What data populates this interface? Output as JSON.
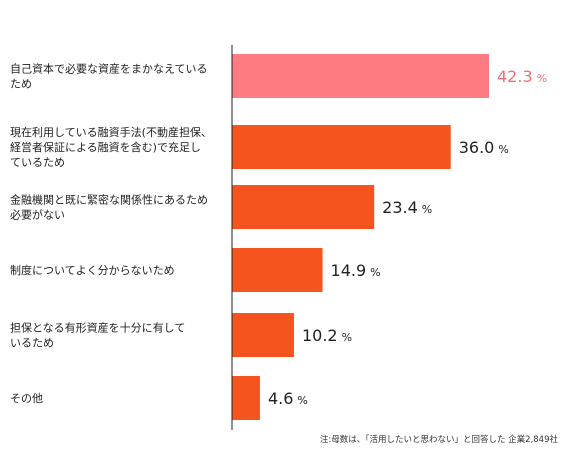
{
  "chart_data": {
    "type": "bar",
    "orientation": "horizontal",
    "categories": [
      [
        "自己資本で必要な資産をまかなえている",
        "ため"
      ],
      [
        "現在利用している融資手法(不動産担保、",
        "経営者保証による融資を含む)で充足し",
        "ているため"
      ],
      [
        "金融機関と既に緊密な関係性にあるため",
        "必要がない"
      ],
      [
        "制度についてよく分からないため"
      ],
      [
        "担保となる有形資産を十分に有して",
        "いるため"
      ],
      [
        "その他"
      ]
    ],
    "values": [
      42.3,
      36.0,
      23.4,
      14.9,
      10.2,
      4.6
    ],
    "value_labels": [
      "42.3",
      "36.0",
      "23.4",
      "14.9",
      "10.2",
      "4.6"
    ],
    "unit": "%",
    "highlight_index": 0,
    "note": "注:母数は、「活用したいと思わない」と回答した 企業2,849社"
  },
  "colors": {
    "highlight_bar": "#ff7b82",
    "highlight_text": "#ee6f77",
    "bar": "#f5541f",
    "text": "#222222",
    "axis": "#222222"
  }
}
